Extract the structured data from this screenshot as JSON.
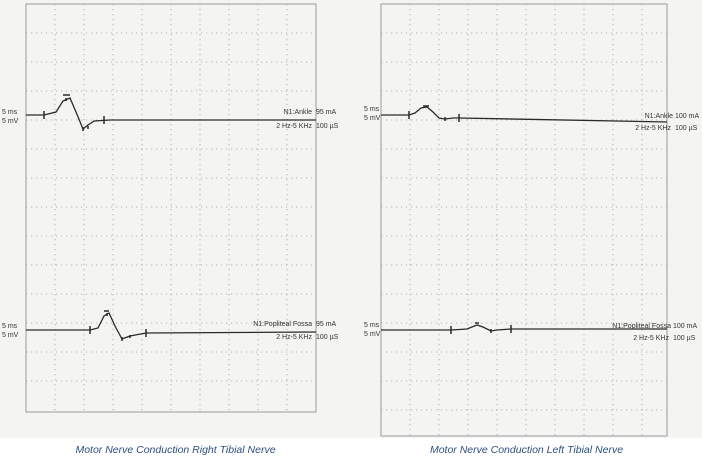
{
  "chart_data": [
    {
      "type": "line",
      "caption": "Motor Nerve Conduction Right Tibial Nerve",
      "traces": [
        {
          "scale_time": "5 ms",
          "scale_amp": "5 mV",
          "site": "N1:Ankle",
          "stim_current": "95 mA",
          "filter": "2 Hz-5 KHz",
          "duration": "100 µS"
        },
        {
          "scale_time": "5 ms",
          "scale_amp": "5 mV",
          "site": "N1:Popliteal Fossa",
          "stim_current": "95 mA",
          "filter": "2 Hz-5 KHz",
          "duration": "100 µS"
        }
      ]
    },
    {
      "type": "line",
      "caption": "Motor Nerve Conduction Left Tibial Nerve",
      "traces": [
        {
          "scale_time": "5 ms",
          "scale_amp": "5 mV",
          "site": "N1:Ankle",
          "stim_current": "100 mA",
          "filter": "2 Hz-5 KHz",
          "duration": "100 µS"
        },
        {
          "scale_time": "5 ms",
          "scale_amp": "5 mV",
          "site": "N1:Popliteal Fossa",
          "stim_current": "100 mA",
          "filter": "2 Hz-5 KHz",
          "duration": "100 µS"
        }
      ]
    }
  ]
}
